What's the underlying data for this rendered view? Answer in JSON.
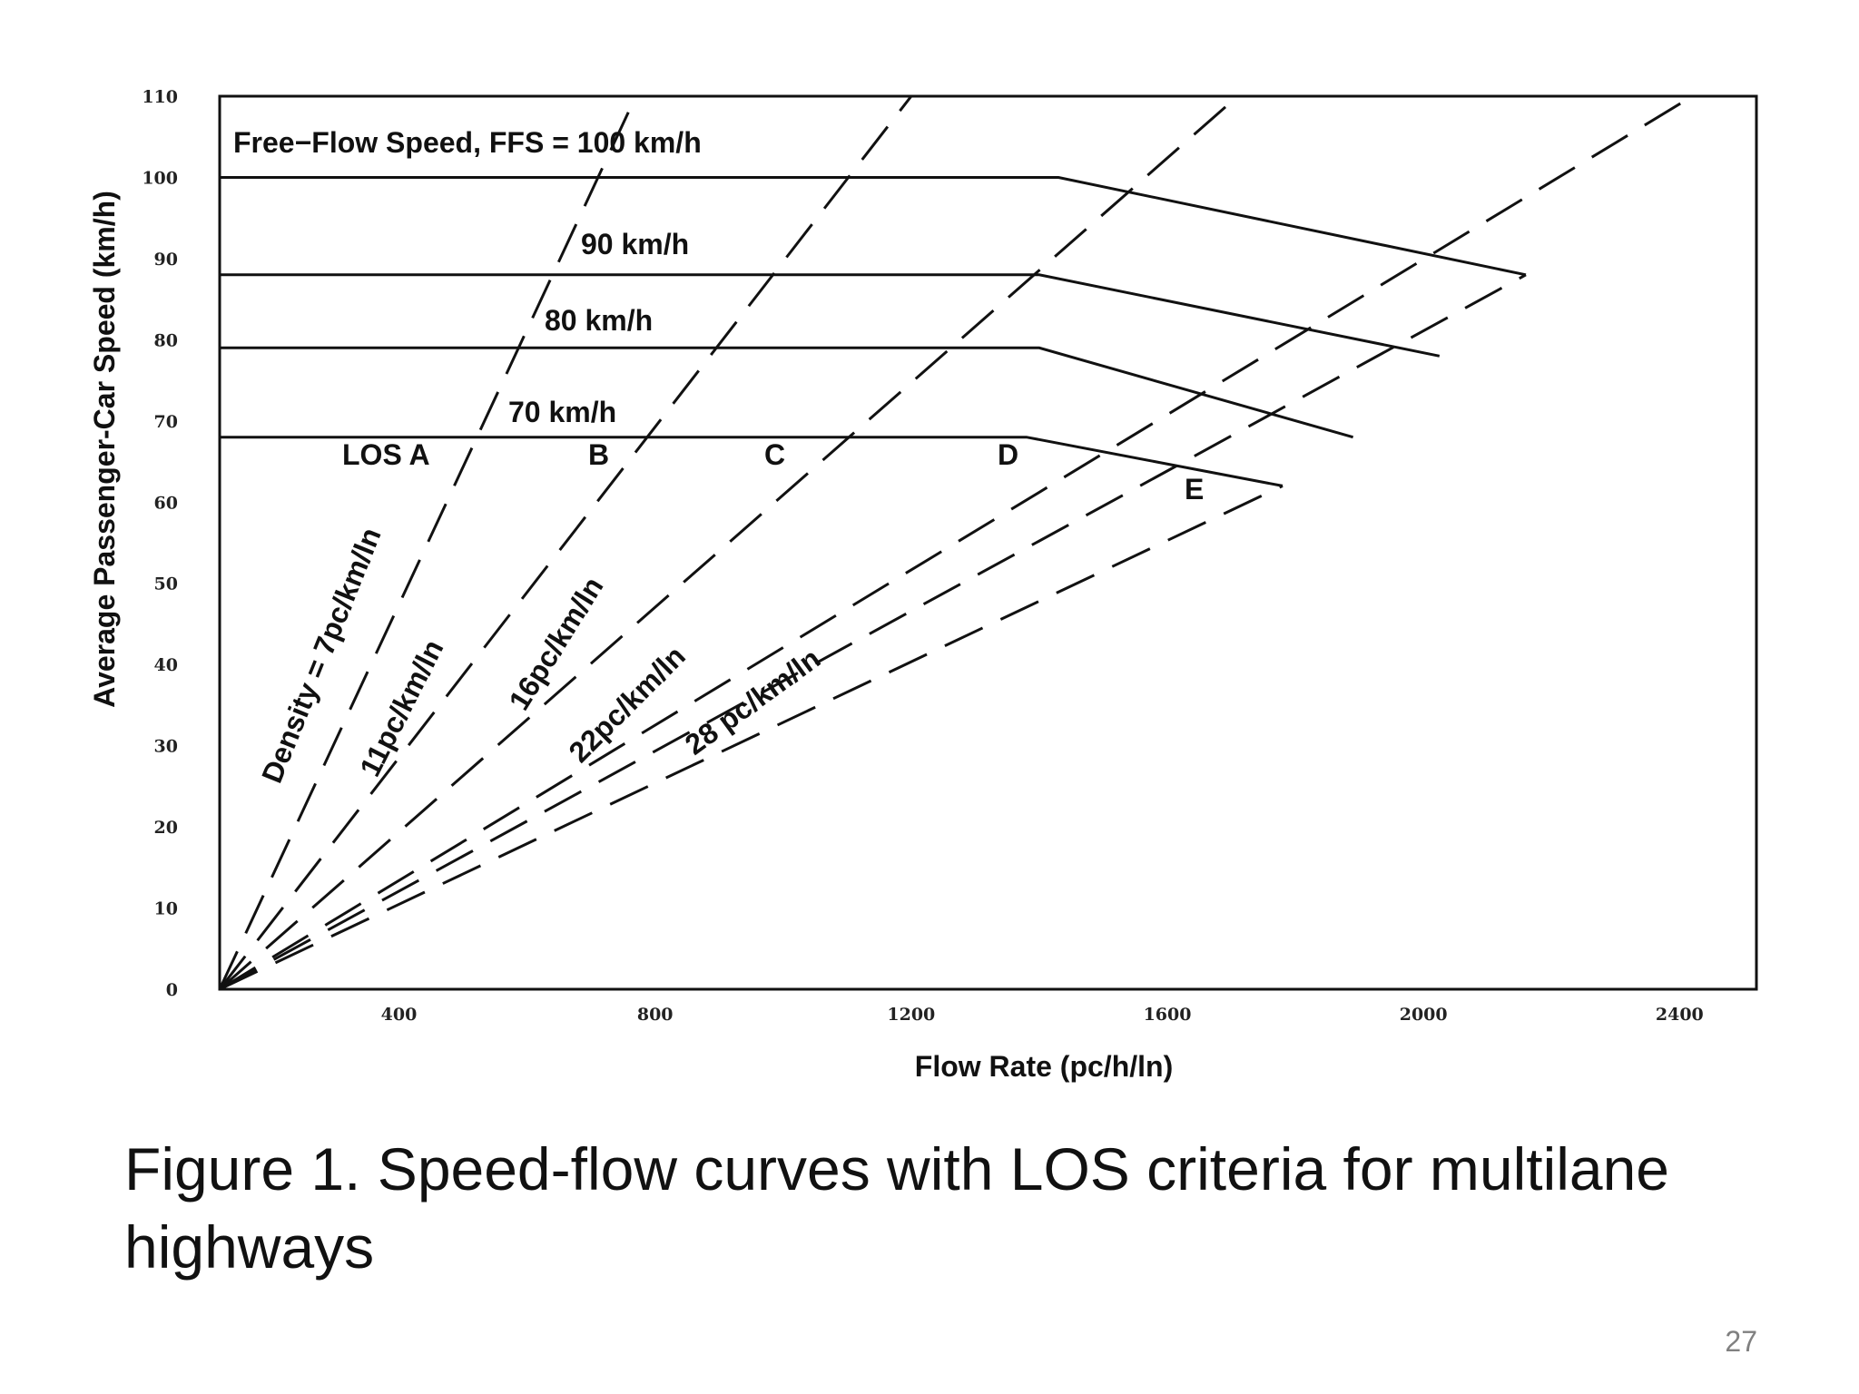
{
  "caption": "Figure 1. Speed-flow curves with LOS criteria for multilane highways",
  "page_number": "27",
  "chart_data": {
    "type": "line",
    "xlabel": "Flow Rate (pc/h/ln)",
    "ylabel": "Average Passenger-Car Speed (km/h)",
    "xlim": [
      120,
      2520
    ],
    "ylim": [
      0,
      110
    ],
    "x_ticks": [
      "400",
      "800",
      "1200",
      "1600",
      "2000",
      "2400"
    ],
    "x_tick_values": [
      400,
      800,
      1200,
      1600,
      2000,
      2400
    ],
    "y_ticks": [
      "0",
      "10",
      "20",
      "30",
      "40",
      "50",
      "60",
      "70",
      "80",
      "90",
      "100",
      "110"
    ],
    "y_tick_values": [
      0,
      10,
      20,
      30,
      40,
      50,
      60,
      70,
      80,
      90,
      100,
      110
    ],
    "grid": false,
    "series": [
      {
        "name": "Free-Flow Speed, FFS = 100 km/h",
        "style": "solid",
        "x": [
          120,
          1430,
          2160
        ],
        "y": [
          100,
          100,
          88
        ]
      },
      {
        "name": "90 km/h",
        "style": "solid",
        "x": [
          120,
          1400,
          2025
        ],
        "y": [
          88,
          88,
          78
        ]
      },
      {
        "name": "80 km/h",
        "style": "solid",
        "x": [
          120,
          1400,
          1890
        ],
        "y": [
          79,
          79,
          68
        ]
      },
      {
        "name": "70 km/h",
        "style": "solid",
        "x": [
          120,
          1380,
          1780
        ],
        "y": [
          68,
          68,
          62
        ]
      }
    ],
    "density_lines": [
      {
        "label": "Density = 7pc/km/ln",
        "x": [
          120,
          770
        ],
        "y": [
          0,
          110
        ]
      },
      {
        "label": "11pc/km/ln",
        "x": [
          120,
          1200
        ],
        "y": [
          0,
          110
        ]
      },
      {
        "label": "16pc/km/ln",
        "x": [
          120,
          1710
        ],
        "y": [
          0,
          110
        ]
      },
      {
        "label": "22pc/km/ln",
        "x": [
          120,
          2160
        ],
        "y": [
          0,
          88
        ]
      },
      {
        "label": "28 pc/km/ln",
        "x": [
          120,
          2420
        ],
        "y": [
          0,
          110
        ]
      },
      {
        "label": "",
        "x": [
          120,
          1780
        ],
        "y": [
          0,
          62
        ]
      }
    ],
    "los_labels": [
      "LOS A",
      "B",
      "C",
      "D",
      "E"
    ],
    "annotations": [
      "Free−Flow Speed, FFS = 100 km/h",
      "90 km/h",
      "80 km/h",
      "70 km/h"
    ],
    "colors": {
      "lines": "#111111",
      "background": "#ffffff"
    }
  }
}
